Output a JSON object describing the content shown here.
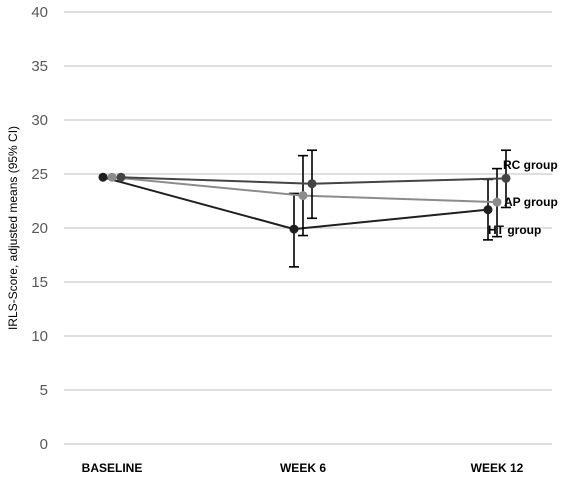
{
  "chart_data": {
    "type": "line",
    "title": "",
    "xlabel": "",
    "ylabel": "IRLS-Score, adjusted means (95% CI)",
    "categories": [
      "BASELINE",
      "WEEK 6",
      "WEEK 12"
    ],
    "ylim": [
      0,
      40
    ],
    "yticks": [
      0,
      5,
      10,
      15,
      20,
      25,
      30,
      35,
      40
    ],
    "grid": true,
    "legend": "none",
    "series": [
      {
        "name": "HT group",
        "color": "#1f1f1f",
        "values": [
          24.7,
          19.9,
          21.7
        ],
        "ci_low": [
          null,
          16.4,
          18.9
        ],
        "ci_high": [
          null,
          23.2,
          24.5
        ]
      },
      {
        "name": "AP group",
        "color": "#8c8c8c",
        "values": [
          24.7,
          23.0,
          22.4
        ],
        "ci_low": [
          null,
          19.3,
          19.2
        ],
        "ci_high": [
          null,
          26.7,
          25.5
        ]
      },
      {
        "name": "RC group",
        "color": "#444444",
        "values": [
          24.7,
          24.1,
          24.6
        ],
        "ci_low": [
          null,
          20.9,
          21.9
        ],
        "ci_high": [
          null,
          27.2,
          27.2
        ]
      }
    ]
  }
}
